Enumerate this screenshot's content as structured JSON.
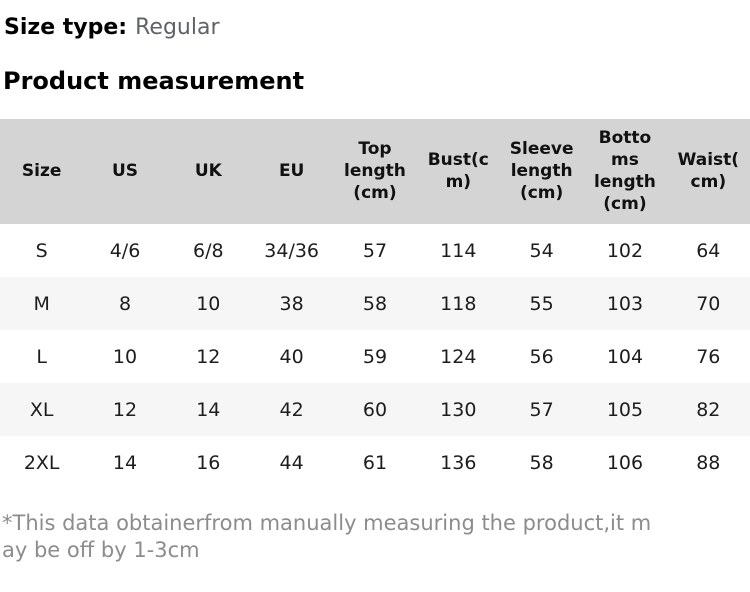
{
  "page": {
    "size_type_label": "Size type:",
    "size_type_value": "Regular",
    "section_title": "Product measurement",
    "footnote": "*This data obtainerfrom manually measuring the product,it m\nay be off by 1-3cm"
  },
  "table": {
    "columns": [
      "Size",
      "US",
      "UK",
      "EU",
      "Top\nlength\n(cm)",
      "Bust(c\nm)",
      "Sleeve\nlength\n(cm)",
      "Botto\nms\nlength\n(cm)",
      "Waist(\ncm)"
    ],
    "column_labels_plain": [
      "Size",
      "US",
      "UK",
      "EU",
      "Top length (cm)",
      "Bust(cm)",
      "Sleeve length (cm)",
      "Bottoms length (cm)",
      "Waist(cm)"
    ],
    "rows": [
      [
        "S",
        "4/6",
        "6/8",
        "34/36",
        "57",
        "114",
        "54",
        "102",
        "64"
      ],
      [
        "M",
        "8",
        "10",
        "38",
        "58",
        "118",
        "55",
        "103",
        "70"
      ],
      [
        "L",
        "10",
        "12",
        "40",
        "59",
        "124",
        "56",
        "104",
        "76"
      ],
      [
        "XL",
        "12",
        "14",
        "42",
        "60",
        "130",
        "57",
        "105",
        "82"
      ],
      [
        "2XL",
        "14",
        "16",
        "44",
        "61",
        "136",
        "58",
        "106",
        "88"
      ]
    ]
  },
  "colors": {
    "header_bg": "#d4d4d4",
    "row_alt_bg": "#f6f6f6",
    "title_text": "#000000",
    "body_text": "#1d1d1f",
    "size_type_value_text": "#5f6368",
    "footnote_text": "#8c8c8c"
  }
}
